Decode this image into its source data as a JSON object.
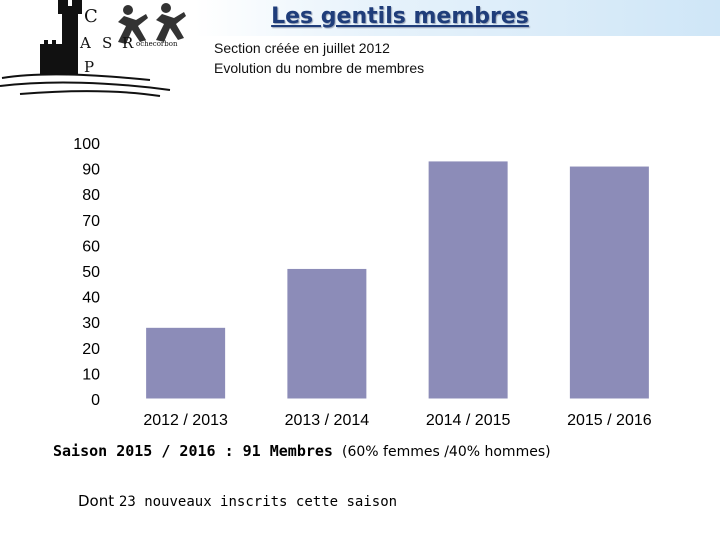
{
  "logo": {
    "letters": [
      "C",
      "A",
      "S",
      "R",
      "P"
    ],
    "text": "ochecorbon"
  },
  "header": {
    "title": "Les gentils membres",
    "subtitle_line1": "Section créée en juillet 2012",
    "subtitle_line2": "Evolution du nombre de membres"
  },
  "chart_data": {
    "type": "bar",
    "categories": [
      "2012 / 2013",
      "2013 / 2014",
      "2014 / 2015",
      "2015 / 2016"
    ],
    "values": [
      28,
      51,
      93,
      91
    ],
    "ylim": [
      0,
      100
    ],
    "yticks": [
      0,
      10,
      20,
      30,
      40,
      50,
      60,
      70,
      80,
      90,
      100
    ],
    "bar_color": "#8c8cb8",
    "grid": false,
    "legend": "none",
    "title": "",
    "xlabel": "",
    "ylabel": ""
  },
  "summary": {
    "bold": "Saison 2015 / 2016 : 91 Membres",
    "light": "(60% femmes /40% hommes)"
  },
  "note": {
    "bold": "Dont",
    "light": "23 nouveaux inscrits cette saison"
  }
}
